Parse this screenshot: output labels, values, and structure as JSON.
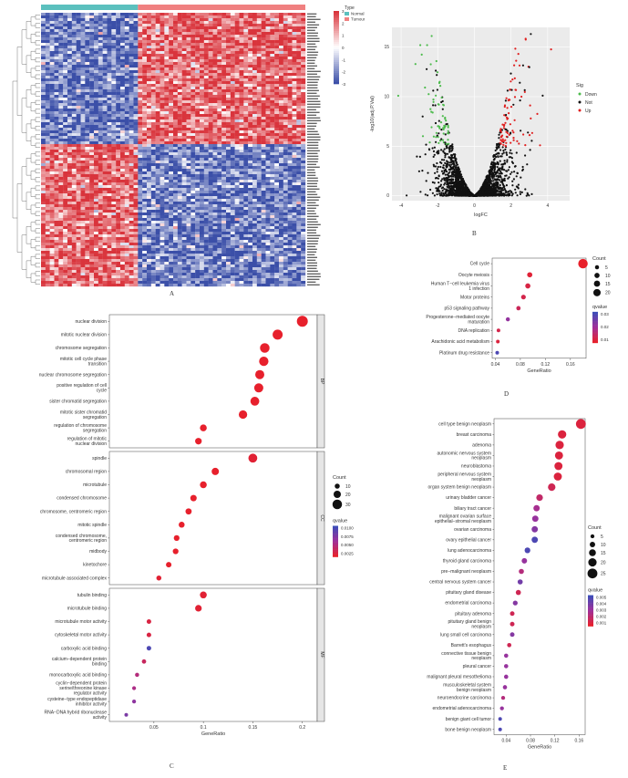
{
  "panel_labels": {
    "a": "A",
    "b": "B",
    "c": "C",
    "d": "D",
    "e": "E"
  },
  "heatmap": {
    "legend_title": "Type",
    "legend_items": [
      "Normal",
      "Tumour"
    ],
    "legend_colors": [
      "#5bc0be",
      "#f08080"
    ],
    "scale_ticks": [
      "3",
      "2",
      "1",
      "0",
      "-1",
      "-2",
      "-3"
    ]
  },
  "chart_data": [
    {
      "type": "scatter",
      "name": "volcano",
      "xlabel": "logFC",
      "ylabel": "-log10(adj.P.Val)",
      "xticks": [
        -4,
        -2,
        0,
        2,
        4
      ],
      "yticks": [
        0,
        5,
        10,
        15
      ],
      "xlim": [
        -4.5,
        5.2
      ],
      "ylim": [
        -0.5,
        17
      ],
      "legend_title": "Sig",
      "legend": [
        "Down",
        "Not",
        "Up"
      ],
      "colors": {
        "Down": "#4dbb4d",
        "Not": "#111111",
        "Up": "#e02020"
      },
      "grid": true,
      "legend_position": "right"
    },
    {
      "type": "scatter",
      "name": "kegg",
      "xlabel": "GeneRatio",
      "xticks": [
        0.04,
        0.08,
        0.12,
        0.16
      ],
      "xlim": [
        0.035,
        0.185
      ],
      "categories": [
        "Cell cycle",
        "Oocyte meiosis",
        "Human T−cell leukemia virus 1 infection",
        "Motor proteins",
        "p53 signaling pathway",
        "Progesterone−mediated oocyte maturation",
        "DNA replication",
        "Arachidonic acid metabolism",
        "Platinum drug resistance"
      ],
      "category_lines": [
        [
          "Cell cycle"
        ],
        [
          "Oocyte meiosis"
        ],
        [
          "Human T−cell leukemia virus",
          "1 infection"
        ],
        [
          "Motor proteins"
        ],
        [
          "p53 signaling pathway"
        ],
        [
          "Progesterone−mediated oocyte",
          "maturation"
        ],
        [
          "DNA replication"
        ],
        [
          "Arachidonic acid metabolism"
        ],
        [
          "Platinum drug resistance"
        ]
      ],
      "x": [
        0.18,
        0.095,
        0.092,
        0.085,
        0.077,
        0.06,
        0.045,
        0.044,
        0.043
      ],
      "count": [
        30,
        10,
        10,
        8,
        6,
        5,
        3,
        3,
        3
      ],
      "qvalue": [
        0.001,
        0.003,
        0.005,
        0.006,
        0.008,
        0.02,
        0.006,
        0.004,
        0.032
      ],
      "count_legend_title": "Count",
      "count_legend": [
        5,
        10,
        15,
        20
      ],
      "qvalue_legend_title": "qvalue",
      "qvalue_legend": [
        "0.03",
        "0.02",
        "0.01"
      ],
      "qrange": [
        0.001,
        0.035
      ]
    },
    {
      "type": "scatter",
      "name": "go",
      "xlabel": "GeneRatio",
      "xticks": [
        0.05,
        0.1,
        0.15,
        0.2
      ],
      "xlim": [
        0.005,
        0.215
      ],
      "facets": [
        {
          "label": "BP",
          "categories": [
            "nuclear division",
            "mitotic nuclear division",
            "chromosome segregation",
            "mitotic cell cycle phase transition",
            "nuclear chromosome segregation",
            "positive regulation of cell cycle",
            "sister chromatid segregation",
            "mitotic sister chromatid segregation",
            "regulation of chromosome segregation",
            "regulation of mitotic nuclear division"
          ],
          "category_lines": [
            [
              "nuclear division"
            ],
            [
              "mitotic nuclear division"
            ],
            [
              "chromosome segregation"
            ],
            [
              "mitotic cell cycle phase",
              "transition"
            ],
            [
              "nuclear chromosome segregation"
            ],
            [
              "positive regulation of cell",
              "cycle"
            ],
            [
              "sister chromatid segregation"
            ],
            [
              "mitotic sister chromatid",
              "segregation"
            ],
            [
              "regulation of chromosome",
              "segregation"
            ],
            [
              "regulation of mitotic",
              "nuclear division"
            ]
          ],
          "x": [
            0.2,
            0.175,
            0.162,
            0.161,
            0.157,
            0.156,
            0.152,
            0.14,
            0.1,
            0.095
          ],
          "count": [
            36,
            32,
            30,
            29,
            28,
            28,
            27,
            25,
            18,
            17
          ],
          "qvalue": [
            0.0001,
            0.0001,
            0.0001,
            0.0001,
            0.0001,
            0.0001,
            0.0001,
            0.0001,
            0.0001,
            0.0001
          ]
        },
        {
          "label": "CC",
          "categories": [
            "spindle",
            "chromosomal region",
            "microtubule",
            "condensed chromosome",
            "chromosome, centromeric region",
            "mitotic spindle",
            "condensed chromosome, centromeric region",
            "midbody",
            "kinetochore",
            "microtubule associated complex"
          ],
          "category_lines": [
            [
              "spindle"
            ],
            [
              "chromosomal region"
            ],
            [
              "microtubule"
            ],
            [
              "condensed chromosome"
            ],
            [
              "chromosome, centromeric region"
            ],
            [
              "mitotic spindle"
            ],
            [
              "condensed chromosome,",
              "centromeric region"
            ],
            [
              "midbody"
            ],
            [
              "kinetochore"
            ],
            [
              "microtubule associated complex"
            ]
          ],
          "x": [
            0.15,
            0.112,
            0.1,
            0.09,
            0.085,
            0.078,
            0.073,
            0.072,
            0.065,
            0.055
          ],
          "count": [
            27,
            20,
            18,
            16,
            15,
            14,
            13,
            13,
            12,
            10
          ],
          "qvalue": [
            0.0005,
            0.0001,
            0.0001,
            0.0001,
            0.0001,
            0.0001,
            0.0001,
            0.0001,
            0.0001,
            0.0005
          ]
        },
        {
          "label": "MF",
          "categories": [
            "tubulin binding",
            "microtubule binding",
            "microtubule motor activity",
            "cytoskeletal motor activity",
            "carboxylic acid binding",
            "calcium−dependent protein binding",
            "monocarboxylic acid binding",
            "cyclin−dependent protein serine/threonine kinase regulator activity",
            "cysteine−type endopeptidase inhibitor activity",
            "RNA−DNA hybrid ribonuclease activity"
          ],
          "category_lines": [
            [
              "tubulin binding"
            ],
            [
              "microtubule binding"
            ],
            [
              "microtubule motor activity"
            ],
            [
              "cytoskeletal motor activity"
            ],
            [
              "carboxylic acid binding"
            ],
            [
              "calcium−dependent protein",
              "binding"
            ],
            [
              "monocarboxylic acid binding"
            ],
            [
              "cyclin−dependent protein",
              "serine/threonine kinase",
              "regulator activity"
            ],
            [
              "cysteine−type endopeptidase",
              "inhibitor activity"
            ],
            [
              "RNA−DNA hybrid ribonuclease",
              "activity"
            ]
          ],
          "x": [
            0.1,
            0.095,
            0.045,
            0.045,
            0.045,
            0.04,
            0.033,
            0.03,
            0.03,
            0.022
          ],
          "count": [
            18,
            17,
            8,
            8,
            8,
            7,
            6,
            5,
            5,
            4
          ],
          "qvalue": [
            0.0005,
            0.0005,
            0.0012,
            0.0012,
            0.01,
            0.0025,
            0.004,
            0.0045,
            0.0065,
            0.0075
          ]
        }
      ],
      "count_legend_title": "Count",
      "count_legend": [
        10,
        20,
        30
      ],
      "qvalue_legend_title": "qvalue",
      "qvalue_legend": [
        "0.0100",
        "0.0075",
        "0.0050",
        "0.0025"
      ],
      "qrange": [
        0,
        0.011
      ]
    },
    {
      "type": "scatter",
      "name": "do",
      "xlabel": "GeneRatio",
      "xticks": [
        0.04,
        0.08,
        0.12,
        0.16
      ],
      "xlim": [
        0.02,
        0.17
      ],
      "categories": [
        "cell type benign neoplasm",
        "breast carcinoma",
        "adenoma",
        "autonomic nervous system neoplasm",
        "neuroblastoma",
        "peripheral nervous system neoplasm",
        "organ system benign neoplasm",
        "urinary bladder cancer",
        "biliary tract cancer",
        "malignant ovarian surface epithelial−stromal neoplasm",
        "ovarian carcinoma",
        "ovary epithelial cancer",
        "lung adenocarcinoma",
        "thyroid gland carcinoma",
        "pre−malignant neoplasm",
        "central nervous system cancer",
        "pituitary gland disease",
        "endometrial carcinoma",
        "pituitary adenoma",
        "pituitary gland benign neoplasm",
        "lung small cell carcinoma",
        "Barrett's esophagus",
        "connective tissue benign neoplasm",
        "pleural cancer",
        "malignant pleural mesothelioma",
        "musculoskeletal system benign neoplasm",
        "neuroendocrine carcinoma",
        "endometrial adenocarcinoma",
        "benign giant cell tumor",
        "bone benign neoplasm"
      ],
      "category_lines": [
        [
          "cell type benign neoplasm"
        ],
        [
          "breast carcinoma"
        ],
        [
          "adenoma"
        ],
        [
          "autonomic nervous system",
          "neoplasm"
        ],
        [
          "neuroblastoma"
        ],
        [
          "peripheral nervous system",
          "neoplasm"
        ],
        [
          "organ system benign neoplasm"
        ],
        [
          "urinary bladder cancer"
        ],
        [
          "biliary tract cancer"
        ],
        [
          "malignant ovarian surface",
          "epithelial−stromal neoplasm"
        ],
        [
          "ovarian carcinoma"
        ],
        [
          "ovary epithelial cancer"
        ],
        [
          "lung adenocarcinoma"
        ],
        [
          "thyroid gland carcinoma"
        ],
        [
          "pre−malignant neoplasm"
        ],
        [
          "central nervous system cancer"
        ],
        [
          "pituitary gland disease"
        ],
        [
          "endometrial carcinoma"
        ],
        [
          "pituitary adenoma"
        ],
        [
          "pituitary gland benign",
          "neoplasm"
        ],
        [
          "lung small cell carcinoma"
        ],
        [
          "Barrett's esophagus"
        ],
        [
          "connective tissue benign",
          "neoplasm"
        ],
        [
          "pleural cancer"
        ],
        [
          "malignant pleural mesothelioma"
        ],
        [
          "musculoskeletal system",
          "benign neoplasm"
        ],
        [
          "neuroendocrine carcinoma"
        ],
        [
          "endometrial adenocarcinoma"
        ],
        [
          "benign giant cell tumor"
        ],
        [
          "bone benign neoplasm"
        ]
      ],
      "x": [
        0.163,
        0.132,
        0.128,
        0.127,
        0.126,
        0.125,
        0.115,
        0.095,
        0.09,
        0.088,
        0.087,
        0.087,
        0.075,
        0.07,
        0.065,
        0.063,
        0.06,
        0.055,
        0.05,
        0.05,
        0.05,
        0.045,
        0.04,
        0.04,
        0.04,
        0.038,
        0.035,
        0.033,
        0.03,
        0.03
      ],
      "count": [
        25,
        20,
        20,
        19,
        19,
        19,
        17,
        14,
        13,
        13,
        13,
        13,
        11,
        10,
        9,
        9,
        9,
        8,
        7,
        7,
        7,
        6,
        6,
        6,
        6,
        6,
        5,
        5,
        4,
        4
      ],
      "qvalue": [
        0.0005,
        0.0005,
        0.0005,
        0.0005,
        0.0005,
        0.0005,
        0.001,
        0.0015,
        0.0025,
        0.003,
        0.0035,
        0.005,
        0.005,
        0.003,
        0.002,
        0.004,
        0.001,
        0.0035,
        0.001,
        0.001,
        0.0035,
        0.001,
        0.003,
        0.003,
        0.003,
        0.003,
        0.002,
        0.003,
        0.005,
        0.005
      ],
      "count_legend_title": "Count",
      "count_legend": [
        5,
        10,
        15,
        20,
        25
      ],
      "qvalue_legend_title": "qvalue",
      "qvalue_legend": [
        "0.005",
        "0.004",
        "0.003",
        "0.002",
        "0.001"
      ],
      "qrange": [
        0,
        0.0055
      ]
    }
  ]
}
